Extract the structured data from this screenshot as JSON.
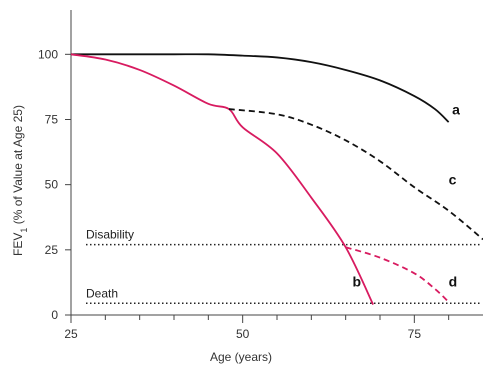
{
  "chart_data": {
    "type": "line",
    "title": "",
    "xlabel": "Age (years)",
    "ylabel_main": "FEV",
    "ylabel_sub": "1",
    "ylabel_rest": " (% of Value at Age 25)",
    "xlim": [
      25,
      85
    ],
    "ylim": [
      0,
      117
    ],
    "x_ticks": [
      25,
      50,
      75
    ],
    "y_ticks": [
      0,
      25,
      50,
      75,
      100
    ],
    "x_minor_ticks": [
      30,
      35,
      40,
      45,
      55,
      60,
      65,
      70,
      80
    ],
    "grid": false,
    "legend": "none",
    "series": [
      {
        "name": "a",
        "color": "#111111",
        "style": "solid",
        "x": [
          25,
          30,
          35,
          40,
          45,
          50,
          55,
          60,
          65,
          70,
          75,
          78,
          80
        ],
        "y": [
          100,
          100,
          100,
          100,
          100,
          99.5,
          98.8,
          97,
          94,
          90,
          84,
          79,
          74
        ]
      },
      {
        "name": "b",
        "color": "#d81b60",
        "style": "solid",
        "x": [
          25,
          30,
          35,
          40,
          45,
          48,
          50,
          55,
          60,
          65,
          69
        ],
        "y": [
          100,
          98,
          94,
          88,
          81,
          79,
          72,
          62,
          45,
          26,
          4
        ]
      },
      {
        "name": "c",
        "color": "#111111",
        "style": "dashed",
        "x": [
          48,
          55,
          60,
          65,
          70,
          75,
          80,
          85
        ],
        "y": [
          79,
          77,
          73,
          67,
          59,
          49,
          40,
          29
        ]
      },
      {
        "name": "d",
        "color": "#d81b60",
        "style": "dashed",
        "x": [
          65,
          70,
          75,
          78,
          80
        ],
        "y": [
          26,
          22,
          16,
          10,
          5
        ]
      }
    ],
    "reference_lines": [
      {
        "label": "Disability",
        "y": 27,
        "color": "#222222"
      },
      {
        "label": "Death",
        "y": 4.5,
        "color": "#222222"
      }
    ],
    "line_labels": [
      {
        "text": "a",
        "x": 80.5,
        "y": 77
      },
      {
        "text": "c",
        "x": 80,
        "y": 50
      },
      {
        "text": "b",
        "x": 66,
        "y": 11
      },
      {
        "text": "d",
        "x": 80,
        "y": 11
      }
    ]
  }
}
